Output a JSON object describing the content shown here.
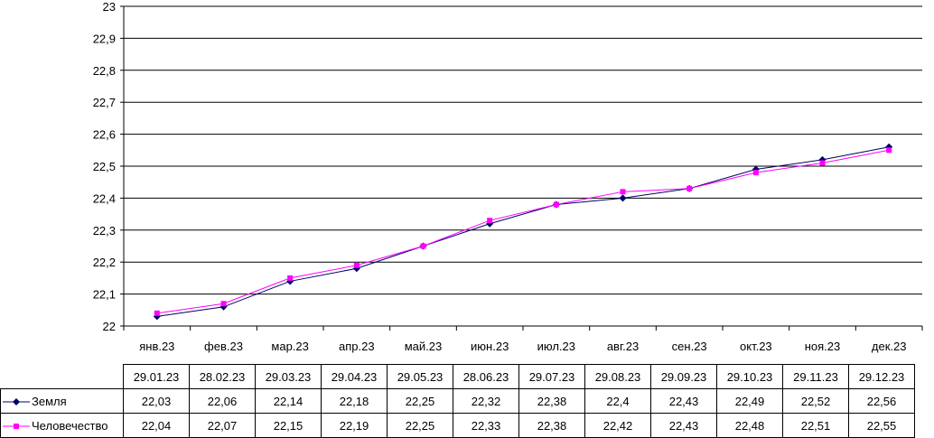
{
  "chart_data": {
    "type": "line",
    "categories": [
      "янв.23",
      "фев.23",
      "мар.23",
      "апр.23",
      "май.23",
      "июн.23",
      "июл.23",
      "авг.23",
      "сен.23",
      "окт.23",
      "ноя.23",
      "дек.23"
    ],
    "dates": [
      "29.01.23",
      "28.02.23",
      "29.03.23",
      "29.04.23",
      "29.05.23",
      "28.06.23",
      "29.07.23",
      "29.08.23",
      "29.09.23",
      "29.10.23",
      "29.11.23",
      "29.12.23"
    ],
    "ylim": [
      22,
      23
    ],
    "yticks": [
      "22",
      "22,1",
      "22,2",
      "22,3",
      "22,4",
      "22,5",
      "22,6",
      "22,7",
      "22,8",
      "22,9",
      "23"
    ],
    "grid": true,
    "series": [
      {
        "name": "Земля",
        "color": "#000066",
        "marker": "diamond",
        "values": [
          22.03,
          22.06,
          22.14,
          22.18,
          22.25,
          22.32,
          22.38,
          22.4,
          22.43,
          22.49,
          22.52,
          22.56
        ],
        "labels": [
          "22,03",
          "22,06",
          "22,14",
          "22,18",
          "22,25",
          "22,32",
          "22,38",
          "22,4",
          "22,43",
          "22,49",
          "22,52",
          "22,56"
        ]
      },
      {
        "name": "Человечество",
        "color": "#ff00ff",
        "marker": "square",
        "values": [
          22.04,
          22.07,
          22.15,
          22.19,
          22.25,
          22.33,
          22.38,
          22.42,
          22.43,
          22.48,
          22.51,
          22.55
        ],
        "labels": [
          "22,04",
          "22,07",
          "22,15",
          "22,19",
          "22,25",
          "22,33",
          "22,38",
          "22,42",
          "22,43",
          "22,48",
          "22,51",
          "22,55"
        ]
      }
    ]
  }
}
